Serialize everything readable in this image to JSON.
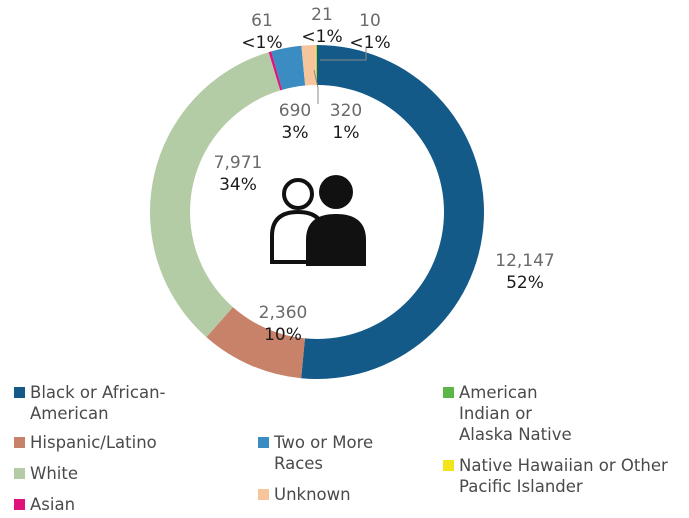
{
  "chart_data": {
    "type": "donut",
    "series": [
      {
        "name": "Black or African-American",
        "color": "#145a88",
        "value": 12147,
        "value_label": "12,147",
        "percent_label": "52%"
      },
      {
        "name": "Hispanic/Latino",
        "color": "#c9826a",
        "value": 2360,
        "value_label": "2,360",
        "percent_label": "10%"
      },
      {
        "name": "White",
        "color": "#b4cca6",
        "value": 7971,
        "value_label": "7,971",
        "percent_label": "34%"
      },
      {
        "name": "Asian",
        "color": "#e0137d",
        "value": 61,
        "value_label": "61",
        "percent_label": "<1%"
      },
      {
        "name": "Two or More Races",
        "color": "#3a8cc2",
        "value": 690,
        "value_label": "690",
        "percent_label": "3%"
      },
      {
        "name": "Unknown",
        "color": "#f7c49c",
        "value": 320,
        "value_label": "320",
        "percent_label": "1%"
      },
      {
        "name": "Native Hawaiian or Other Pacific Islander",
        "color": "#f2e31a",
        "value": 21,
        "value_label": "21",
        "percent_label": "<1%"
      },
      {
        "name": "American Indian or Alaska Native",
        "color": "#5bb547",
        "value": 10,
        "value_label": "10",
        "percent_label": "<1%"
      }
    ]
  }
}
